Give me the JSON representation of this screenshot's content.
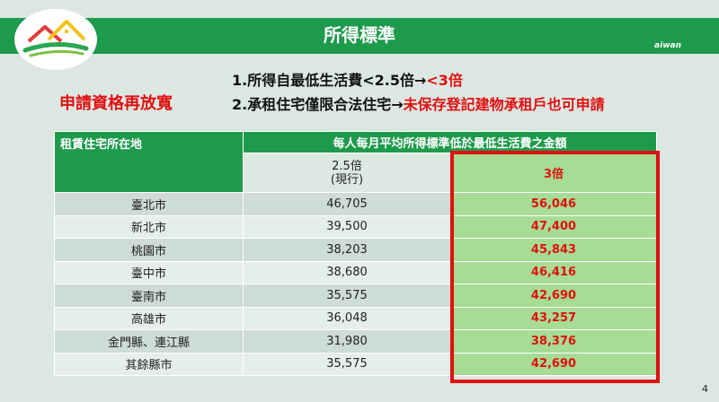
{
  "title": "所得標準",
  "taiwan_text": "aiwan",
  "bullets": [
    {
      "prefix": "1.所得自最低生活費<2.5倍→",
      "highlight": "<3倍"
    },
    {
      "prefix": "2.承租住宅僅限合法住宅→",
      "highlight": "未保存登記建物承租戶也可申請"
    }
  ],
  "left_heading": "申請資格再放寬",
  "table": {
    "col1_header": "租賃住宅所在地",
    "col2_header": "每人每月平均所得標準低於最低生活費之金額",
    "sub_current": "2.5倍",
    "sub_current_note": "(現行)",
    "sub_new": "3倍",
    "rows": [
      {
        "city": "臺北市",
        "current": "46,705",
        "new": "56,046"
      },
      {
        "city": "新北市",
        "current": "39,500",
        "new": "47,400"
      },
      {
        "city": "桃園市",
        "current": "38,203",
        "new": "45,843"
      },
      {
        "city": "臺中市",
        "current": "38,680",
        "new": "46,416"
      },
      {
        "city": "臺南市",
        "current": "35,575",
        "new": "42,690"
      },
      {
        "city": "高雄市",
        "current": "36,048",
        "new": "43,257"
      },
      {
        "city": "金門縣、連江縣",
        "current": "31,980",
        "new": "38,376"
      },
      {
        "city": "其餘縣市",
        "current": "35,575",
        "new": "42,690"
      }
    ]
  },
  "page_number": "4",
  "colors": {
    "brand_green": "#1e9a4c",
    "highlight_red": "#e01010",
    "light_green": "#a6dc94"
  }
}
